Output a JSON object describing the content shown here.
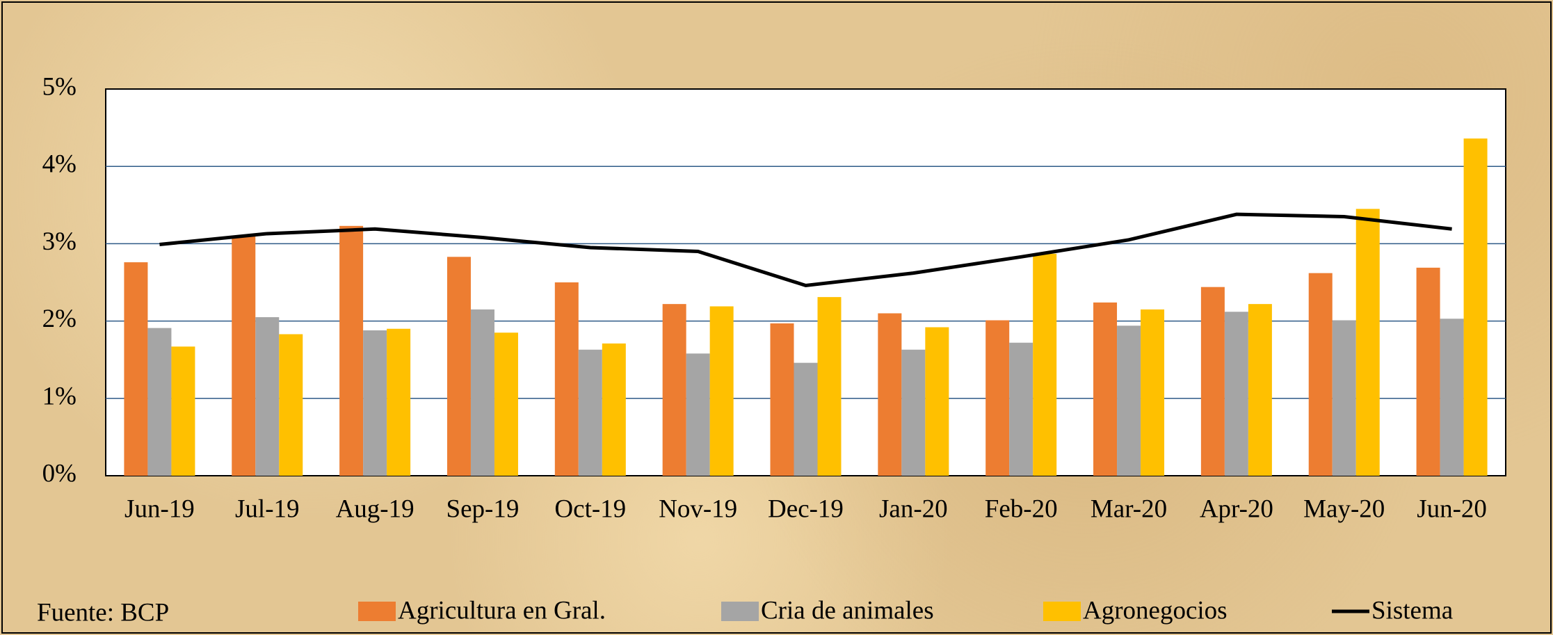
{
  "chart_data": {
    "type": "bar_line",
    "note": "Fuente: BCP",
    "categories": [
      "Jun-19",
      "Jul-19",
      "Aug-19",
      "Sep-19",
      "Oct-19",
      "Nov-19",
      "Dec-19",
      "Jan-20",
      "Feb-20",
      "Mar-20",
      "Apr-20",
      "May-20",
      "Jun-20"
    ],
    "series": [
      {
        "name": "Agricultura en Gral.",
        "type": "bar",
        "color": "#ed7d31",
        "values": [
          2.76,
          3.1,
          3.23,
          2.83,
          2.5,
          2.22,
          1.97,
          2.1,
          2.01,
          2.24,
          2.44,
          2.62,
          2.69
        ]
      },
      {
        "name": "Cria de animales",
        "type": "bar",
        "color": "#a5a5a5",
        "values": [
          1.91,
          2.05,
          1.88,
          2.15,
          1.63,
          1.58,
          1.46,
          1.63,
          1.72,
          1.94,
          2.12,
          2.01,
          2.03
        ]
      },
      {
        "name": "Agronegocios",
        "type": "bar",
        "color": "#ffc000",
        "values": [
          1.67,
          1.83,
          1.9,
          1.85,
          1.71,
          2.19,
          2.31,
          1.92,
          2.87,
          2.15,
          2.22,
          3.45,
          4.36
        ]
      },
      {
        "name": "Sistema",
        "type": "line",
        "color": "#000000",
        "values": [
          2.99,
          3.13,
          3.19,
          3.08,
          2.95,
          2.9,
          2.46,
          2.62,
          2.83,
          3.05,
          3.38,
          3.35,
          3.19
        ]
      }
    ],
    "ylim": [
      0,
      5
    ],
    "yticks": [
      {
        "value": 0,
        "label": "0%"
      },
      {
        "value": 1,
        "label": "1%"
      },
      {
        "value": 2,
        "label": "2%"
      },
      {
        "value": 3,
        "label": "3%"
      },
      {
        "value": 4,
        "label": "4%"
      },
      {
        "value": 5,
        "label": "5%"
      }
    ],
    "grid": true,
    "legend": "bottom"
  }
}
